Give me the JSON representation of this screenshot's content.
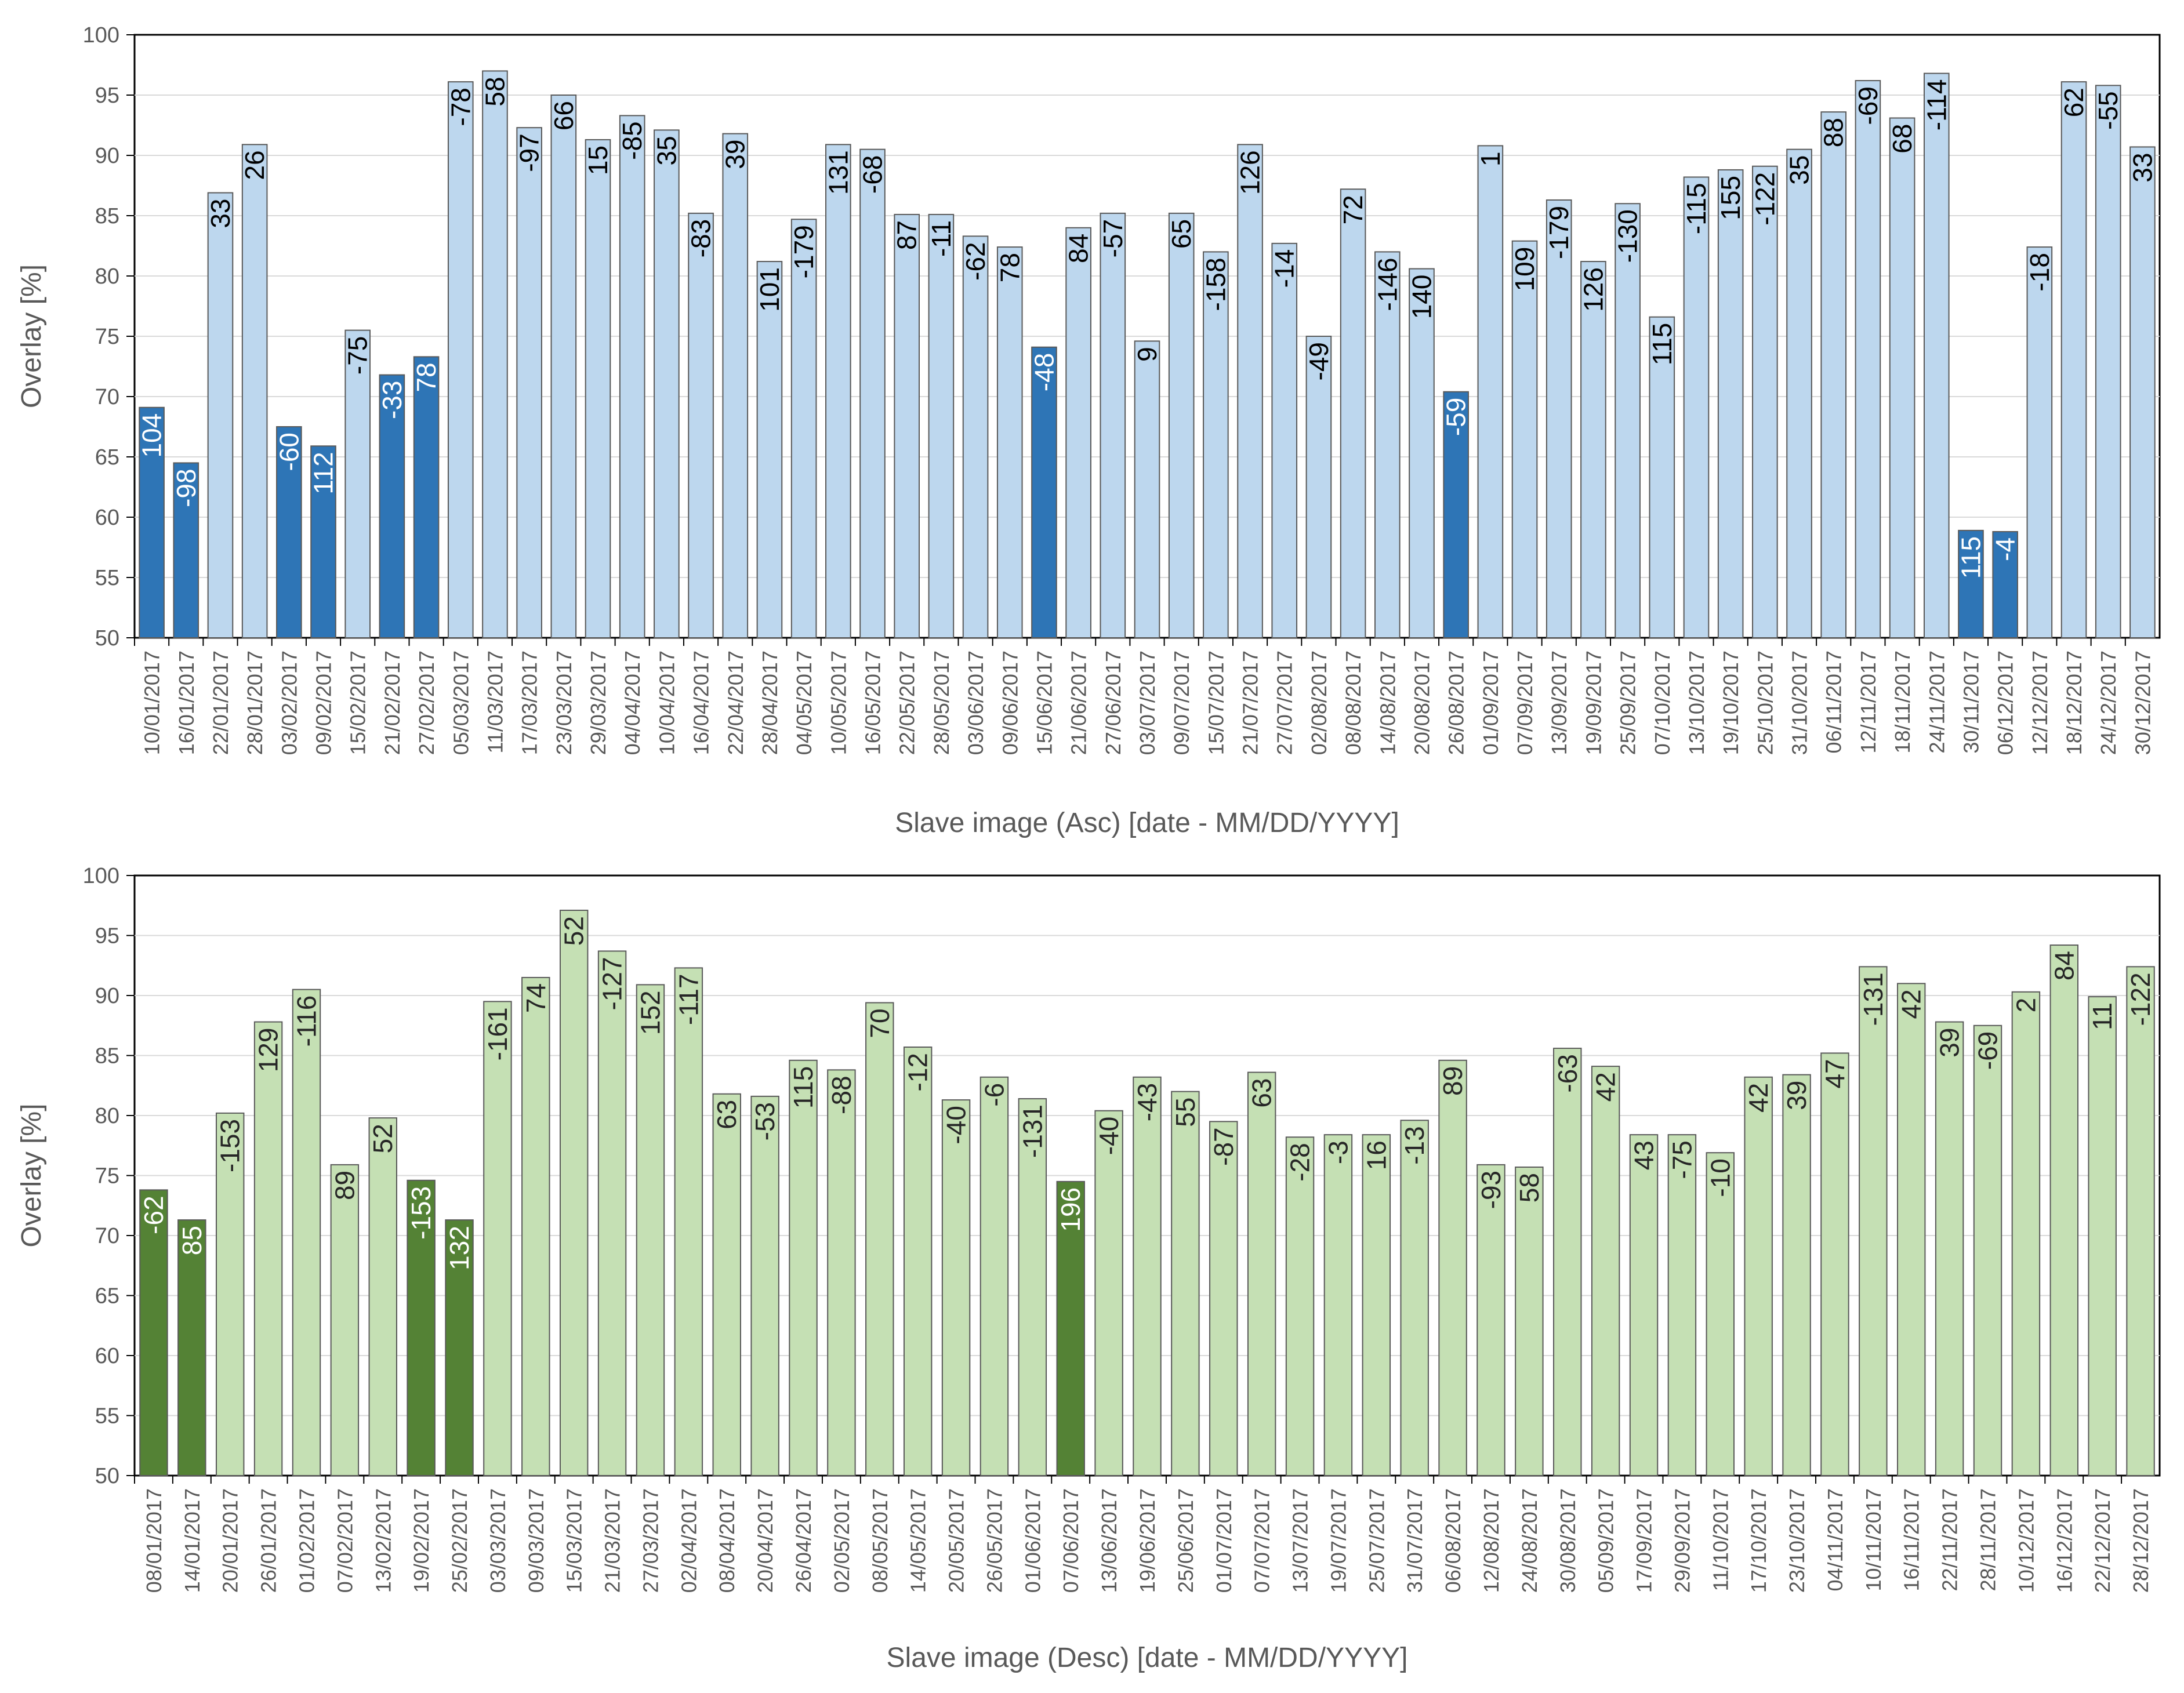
{
  "chart_data": [
    {
      "type": "bar",
      "title": "",
      "xlabel": "Slave image (Asc) [date - MM/DD/YYYY]",
      "ylabel": "Overlay [%]",
      "ylim": [
        50,
        100
      ],
      "yticks": [
        50,
        55,
        60,
        65,
        70,
        75,
        80,
        85,
        90,
        95,
        100
      ],
      "colors": {
        "light": "#bdd7ee",
        "dark": "#2e75b6",
        "label_on_light": "#000000",
        "label_on_dark": "#ffffff"
      },
      "categories": [
        "10/01/2017",
        "16/01/2017",
        "22/01/2017",
        "28/01/2017",
        "03/02/2017",
        "09/02/2017",
        "15/02/2017",
        "21/02/2017",
        "27/02/2017",
        "05/03/2017",
        "11/03/2017",
        "17/03/2017",
        "23/03/2017",
        "29/03/2017",
        "04/04/2017",
        "10/04/2017",
        "16/04/2017",
        "22/04/2017",
        "28/04/2017",
        "04/05/2017",
        "10/05/2017",
        "16/05/2017",
        "22/05/2017",
        "28/05/2017",
        "03/06/2017",
        "09/06/2017",
        "15/06/2017",
        "21/06/2017",
        "27/06/2017",
        "03/07/2017",
        "09/07/2017",
        "15/07/2017",
        "21/07/2017",
        "27/07/2017",
        "02/08/2017",
        "08/08/2017",
        "14/08/2017",
        "20/08/2017",
        "26/08/2017",
        "01/09/2017",
        "07/09/2017",
        "13/09/2017",
        "19/09/2017",
        "25/09/2017",
        "07/10/2017",
        "13/10/2017",
        "19/10/2017",
        "25/10/2017",
        "31/10/2017",
        "06/11/2017",
        "12/11/2017",
        "18/11/2017",
        "24/11/2017",
        "30/11/2017",
        "06/12/2017",
        "12/12/2017",
        "18/12/2017",
        "24/12/2017",
        "30/12/2017"
      ],
      "values": [
        69.1,
        64.5,
        86.9,
        90.9,
        67.5,
        65.9,
        75.5,
        71.8,
        73.3,
        96.1,
        97.0,
        92.3,
        95.0,
        91.3,
        93.3,
        92.1,
        85.2,
        91.8,
        81.2,
        84.7,
        90.9,
        90.5,
        85.1,
        85.1,
        83.3,
        82.4,
        74.1,
        84.0,
        85.2,
        74.6,
        85.2,
        82.0,
        90.9,
        82.7,
        75.0,
        87.2,
        82.0,
        80.6,
        70.4,
        90.8,
        82.9,
        86.3,
        81.2,
        86.0,
        76.6,
        88.2,
        88.8,
        89.1,
        90.5,
        93.6,
        96.2,
        93.1,
        96.8,
        58.9,
        58.8,
        82.4,
        96.1,
        95.8,
        90.7
      ],
      "labels": [
        "104",
        "-98",
        "33",
        "26",
        "-60",
        "112",
        "-75",
        "-33",
        "78",
        "-78",
        "58",
        "-97",
        "66",
        "15",
        "-85",
        "35",
        "-83",
        "39",
        "101",
        "-179",
        "131",
        "-68",
        "87",
        "-11",
        "-62",
        "78",
        "-48",
        "84",
        "-57",
        "9",
        "65",
        "-158",
        "126",
        "-14",
        "-49",
        "72",
        "-146",
        "140",
        "-59",
        "1",
        "109",
        "-179",
        "126",
        "-130",
        "115",
        "-115",
        "155",
        "-122",
        "35",
        "88",
        "-69",
        "68",
        "-114",
        "115",
        "-4",
        "-18",
        "62",
        "-55",
        "33"
      ],
      "highlight": [
        true,
        true,
        false,
        false,
        true,
        true,
        false,
        true,
        true,
        false,
        false,
        false,
        false,
        false,
        false,
        false,
        false,
        false,
        false,
        false,
        false,
        false,
        false,
        false,
        false,
        false,
        true,
        false,
        false,
        false,
        false,
        false,
        false,
        false,
        false,
        false,
        false,
        false,
        true,
        false,
        false,
        false,
        false,
        false,
        false,
        false,
        false,
        false,
        false,
        false,
        false,
        false,
        false,
        true,
        true,
        false,
        false,
        false,
        false
      ]
    },
    {
      "type": "bar",
      "title": "",
      "xlabel": "Slave image (Desc) [date - MM/DD/YYYY]",
      "ylabel": "Overlay [%]",
      "ylim": [
        50,
        100
      ],
      "yticks": [
        50,
        55,
        60,
        65,
        70,
        75,
        80,
        85,
        90,
        95,
        100
      ],
      "colors": {
        "light": "#c5e0b4",
        "dark": "#548235",
        "label_on_light": "#262626",
        "label_on_dark": "#ffffff"
      },
      "categories": [
        "08/01/2017",
        "14/01/2017",
        "20/01/2017",
        "26/01/2017",
        "01/02/2017",
        "07/02/2017",
        "13/02/2017",
        "19/02/2017",
        "25/02/2017",
        "03/03/2017",
        "09/03/2017",
        "15/03/2017",
        "21/03/2017",
        "27/03/2017",
        "02/04/2017",
        "08/04/2017",
        "20/04/2017",
        "26/04/2017",
        "02/05/2017",
        "08/05/2017",
        "14/05/2017",
        "20/05/2017",
        "26/05/2017",
        "01/06/2017",
        "07/06/2017",
        "13/06/2017",
        "19/06/2017",
        "25/06/2017",
        "01/07/2017",
        "07/07/2017",
        "13/07/2017",
        "19/07/2017",
        "25/07/2017",
        "31/07/2017",
        "06/08/2017",
        "12/08/2017",
        "24/08/2017",
        "30/08/2017",
        "05/09/2017",
        "17/09/2017",
        "29/09/2017",
        "11/10/2017",
        "17/10/2017",
        "23/10/2017",
        "04/11/2017",
        "10/11/2017",
        "16/11/2017",
        "22/11/2017",
        "28/11/2017",
        "10/12/2017",
        "16/12/2017",
        "22/12/2017",
        "28/12/2017"
      ],
      "values": [
        73.8,
        71.3,
        80.2,
        87.8,
        90.5,
        75.9,
        79.8,
        74.6,
        71.3,
        89.5,
        91.5,
        97.1,
        93.7,
        90.9,
        92.3,
        81.8,
        81.6,
        84.6,
        83.8,
        89.4,
        85.7,
        81.3,
        83.2,
        81.4,
        74.5,
        80.4,
        83.2,
        82.0,
        79.5,
        83.6,
        78.2,
        78.4,
        78.4,
        79.6,
        84.6,
        75.9,
        75.7,
        85.6,
        84.1,
        78.4,
        78.4,
        76.9,
        83.2,
        83.4,
        85.2,
        92.4,
        91.0,
        87.8,
        87.5,
        90.3,
        94.2,
        89.9,
        92.4
      ],
      "labels": [
        "-62",
        "85",
        "-153",
        "129",
        "-116",
        "89",
        "52",
        "-153",
        "132",
        "-161",
        "74",
        "52",
        "-127",
        "152",
        "-117",
        "63",
        "-53",
        "115",
        "-88",
        "70",
        "-12",
        "-40",
        "-6",
        "-131",
        "196",
        "-40",
        "-43",
        "55",
        "-87",
        "63",
        "-28",
        "-3",
        "16",
        "-13",
        "89",
        "-93",
        "58",
        "-63",
        "42",
        "43",
        "-75",
        "-10",
        "42",
        "39",
        "47",
        "-131",
        "42",
        "39",
        "-69",
        "2",
        "84",
        "11",
        "-122"
      ],
      "highlight": [
        true,
        true,
        false,
        false,
        false,
        false,
        false,
        true,
        true,
        false,
        false,
        false,
        false,
        false,
        false,
        false,
        false,
        false,
        false,
        false,
        false,
        false,
        false,
        false,
        true,
        false,
        false,
        false,
        false,
        false,
        false,
        false,
        false,
        false,
        false,
        false,
        false,
        false,
        false,
        false,
        false,
        false,
        false,
        false,
        false,
        false,
        false,
        false,
        false,
        false,
        false,
        false,
        false
      ]
    }
  ]
}
